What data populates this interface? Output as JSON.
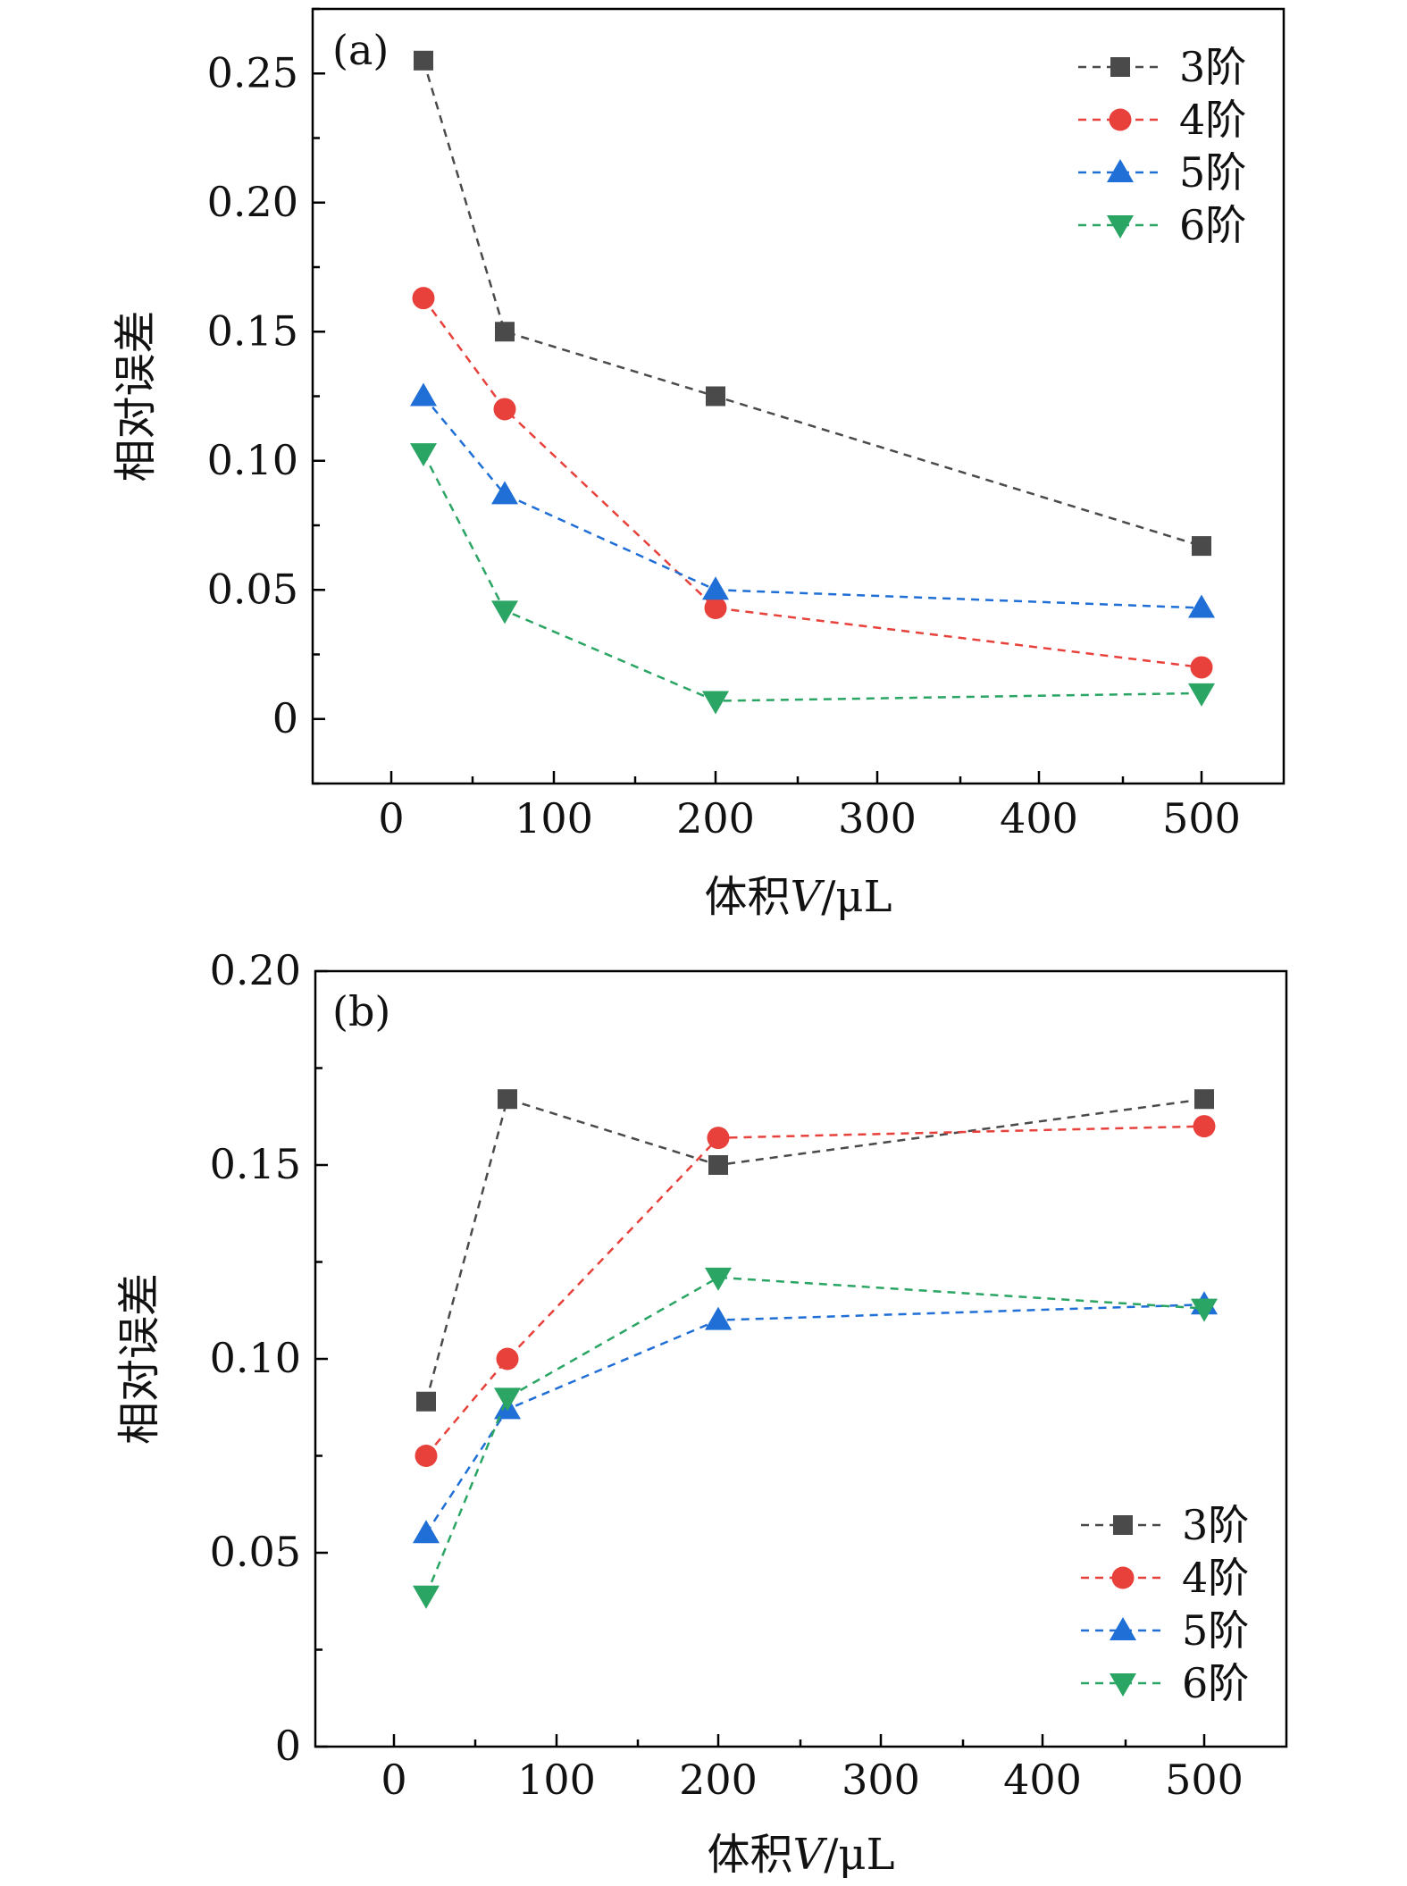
{
  "chart_data": [
    {
      "type": "line",
      "panel_label": "(a)",
      "xlabel_prefix": "体积",
      "xlabel_var": "V",
      "xlabel_unit": "/μL",
      "ylabel": "相对误差",
      "x_tick_labels": [
        "0",
        "100",
        "200",
        "300",
        "400",
        "500"
      ],
      "x_tick_data": [
        0,
        100,
        200,
        300,
        400,
        500
      ],
      "y_tick_labels": [
        "0",
        "0.05",
        "0.10",
        "0.15",
        "0.20",
        "0.25"
      ],
      "y_tick_values": [
        0,
        0.05,
        0.1,
        0.15,
        0.2,
        0.25
      ],
      "ylim": [
        -0.025,
        0.275
      ],
      "legend_position": "top-right",
      "grid": false,
      "x": [
        20,
        70,
        200,
        500
      ],
      "series": [
        {
          "name": "3阶",
          "marker": "square",
          "color": "#4a4a4a",
          "values": [
            0.255,
            0.15,
            0.125,
            0.067
          ]
        },
        {
          "name": "4阶",
          "marker": "circle",
          "color": "#e8413b",
          "values": [
            0.163,
            0.12,
            0.043,
            0.02
          ]
        },
        {
          "name": "5阶",
          "marker": "triangle-up",
          "color": "#1f6fd6",
          "values": [
            0.125,
            0.087,
            0.05,
            0.043
          ]
        },
        {
          "name": "6阶",
          "marker": "triangle-down",
          "color": "#2aa564",
          "values": [
            0.103,
            0.042,
            0.007,
            0.01
          ]
        }
      ]
    },
    {
      "type": "line",
      "panel_label": "(b)",
      "xlabel_prefix": "体积",
      "xlabel_var": "V",
      "xlabel_unit": "/μL",
      "ylabel": "相对误差",
      "x_tick_labels": [
        "0",
        "100",
        "200",
        "300",
        "400",
        "500"
      ],
      "x_tick_data": [
        0,
        100,
        200,
        300,
        400,
        500
      ],
      "y_tick_labels": [
        "0",
        "0.05",
        "0.10",
        "0.15",
        "0.20"
      ],
      "y_tick_values": [
        0,
        0.05,
        0.1,
        0.15,
        0.2
      ],
      "ylim": [
        0,
        0.2
      ],
      "legend_position": "bottom-right",
      "grid": false,
      "x": [
        20,
        70,
        200,
        500
      ],
      "series": [
        {
          "name": "3阶",
          "marker": "square",
          "color": "#4a4a4a",
          "values": [
            0.089,
            0.167,
            0.15,
            0.167
          ]
        },
        {
          "name": "4阶",
          "marker": "circle",
          "color": "#e8413b",
          "values": [
            0.075,
            0.1,
            0.157,
            0.16
          ]
        },
        {
          "name": "5阶",
          "marker": "triangle-up",
          "color": "#1f6fd6",
          "values": [
            0.055,
            0.087,
            0.11,
            0.114
          ]
        },
        {
          "name": "6阶",
          "marker": "triangle-down",
          "color": "#2aa564",
          "values": [
            0.039,
            0.09,
            0.121,
            0.113
          ]
        }
      ]
    }
  ]
}
